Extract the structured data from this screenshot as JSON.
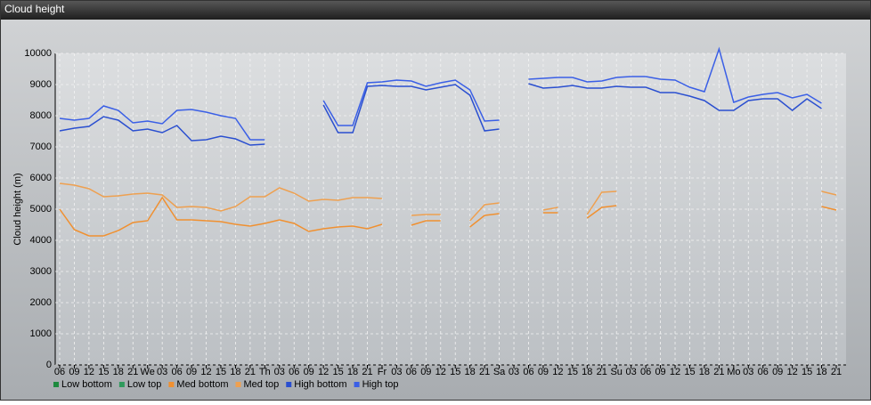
{
  "chart_data": {
    "type": "line",
    "title": "Cloud height",
    "ylabel": "Cloud height (m)",
    "categories": [
      "06",
      "09",
      "12",
      "15",
      "18",
      "21",
      "We",
      "03",
      "06",
      "09",
      "12",
      "15",
      "18",
      "21",
      "Th",
      "03",
      "06",
      "09",
      "12",
      "15",
      "18",
      "21",
      "Fr",
      "03",
      "06",
      "09",
      "12",
      "15",
      "18",
      "21",
      "Sa",
      "03",
      "06",
      "09",
      "12",
      "15",
      "18",
      "21",
      "Su",
      "03",
      "06",
      "09",
      "12",
      "15",
      "18",
      "21",
      "Mo",
      "03",
      "06",
      "09",
      "12",
      "15",
      "18",
      "21"
    ],
    "ylim": [
      0,
      10000
    ],
    "yticks": [
      0,
      1000,
      2000,
      3000,
      4000,
      5000,
      6000,
      7000,
      8000,
      9000,
      10000
    ],
    "grid": true,
    "series": [
      {
        "name": "Low bottom",
        "color": "#1e8a3e",
        "values": [
          null,
          null,
          null,
          null,
          null,
          null,
          null,
          null,
          null,
          null,
          null,
          null,
          null,
          null,
          null,
          null,
          null,
          null,
          null,
          null,
          null,
          null,
          null,
          null,
          null,
          null,
          null,
          null,
          null,
          null,
          null,
          null,
          null,
          null,
          null,
          null,
          null,
          null,
          null,
          null,
          null,
          null,
          null,
          null,
          null,
          null,
          null,
          null,
          null,
          null,
          null,
          null,
          null,
          null
        ]
      },
      {
        "name": "Low top",
        "color": "#2f9a5c",
        "values": [
          null,
          null,
          null,
          null,
          null,
          null,
          null,
          null,
          null,
          null,
          null,
          null,
          null,
          null,
          null,
          null,
          null,
          null,
          null,
          null,
          null,
          null,
          null,
          null,
          null,
          null,
          null,
          null,
          null,
          null,
          null,
          null,
          null,
          null,
          null,
          null,
          null,
          null,
          null,
          null,
          null,
          null,
          null,
          null,
          null,
          null,
          null,
          null,
          null,
          null,
          null,
          null,
          null,
          null
        ]
      },
      {
        "name": "Med bottom",
        "color": "#f09030",
        "values": [
          5000,
          4343,
          4143,
          4143,
          4314,
          4571,
          4629,
          5371,
          4657,
          4657,
          4629,
          4600,
          4514,
          4457,
          4543,
          4657,
          4543,
          4286,
          4371,
          4429,
          4457,
          4371,
          4514,
          null,
          4486,
          4629,
          4629,
          null,
          4429,
          4800,
          4857,
          null,
          null,
          4886,
          4886,
          null,
          4714,
          5057,
          5114,
          null,
          null,
          null,
          null,
          null,
          null,
          null,
          null,
          null,
          null,
          null,
          null,
          null,
          5086,
          4971
        ]
      },
      {
        "name": "Med top",
        "color": "#eea050",
        "values": [
          5829,
          5771,
          5657,
          5400,
          5429,
          5486,
          5514,
          5457,
          5057,
          5086,
          5057,
          4943,
          5086,
          5400,
          5400,
          5686,
          5514,
          5257,
          5314,
          5286,
          5371,
          5371,
          5343,
          null,
          4800,
          4829,
          4829,
          null,
          4629,
          5143,
          5200,
          null,
          null,
          4971,
          5057,
          null,
          4829,
          5543,
          5571,
          null,
          null,
          null,
          null,
          null,
          null,
          null,
          null,
          null,
          null,
          null,
          null,
          null,
          5571,
          5457
        ]
      },
      {
        "name": "High bottom",
        "color": "#2a4fd0",
        "values": [
          7514,
          7600,
          7657,
          7971,
          7857,
          7514,
          7571,
          7457,
          7686,
          7200,
          7229,
          7343,
          7257,
          7057,
          7086,
          null,
          null,
          null,
          8343,
          7457,
          7457,
          8943,
          8971,
          8943,
          8943,
          8829,
          8914,
          9000,
          8657,
          7514,
          7571,
          null,
          9029,
          8886,
          8914,
          8971,
          8886,
          8886,
          8943,
          8914,
          8914,
          8743,
          8743,
          8629,
          8486,
          8171,
          8171,
          8486,
          8543,
          8543,
          8171,
          8543,
          8229,
          null
        ]
      },
      {
        "name": "High top",
        "color": "#3a5fe6",
        "values": [
          7914,
          7857,
          7914,
          8314,
          8171,
          7771,
          7829,
          7743,
          8171,
          8200,
          8114,
          8000,
          7914,
          7229,
          7229,
          null,
          null,
          null,
          8486,
          7686,
          7686,
          9057,
          9086,
          9143,
          9114,
          8943,
          9057,
          9143,
          8829,
          7829,
          7857,
          null,
          9171,
          9200,
          9229,
          9229,
          9086,
          9114,
          9229,
          9257,
          9257,
          9171,
          9143,
          8914,
          8771,
          10143,
          8429,
          8600,
          8686,
          8743,
          8571,
          8686,
          8400,
          null
        ]
      }
    ]
  }
}
